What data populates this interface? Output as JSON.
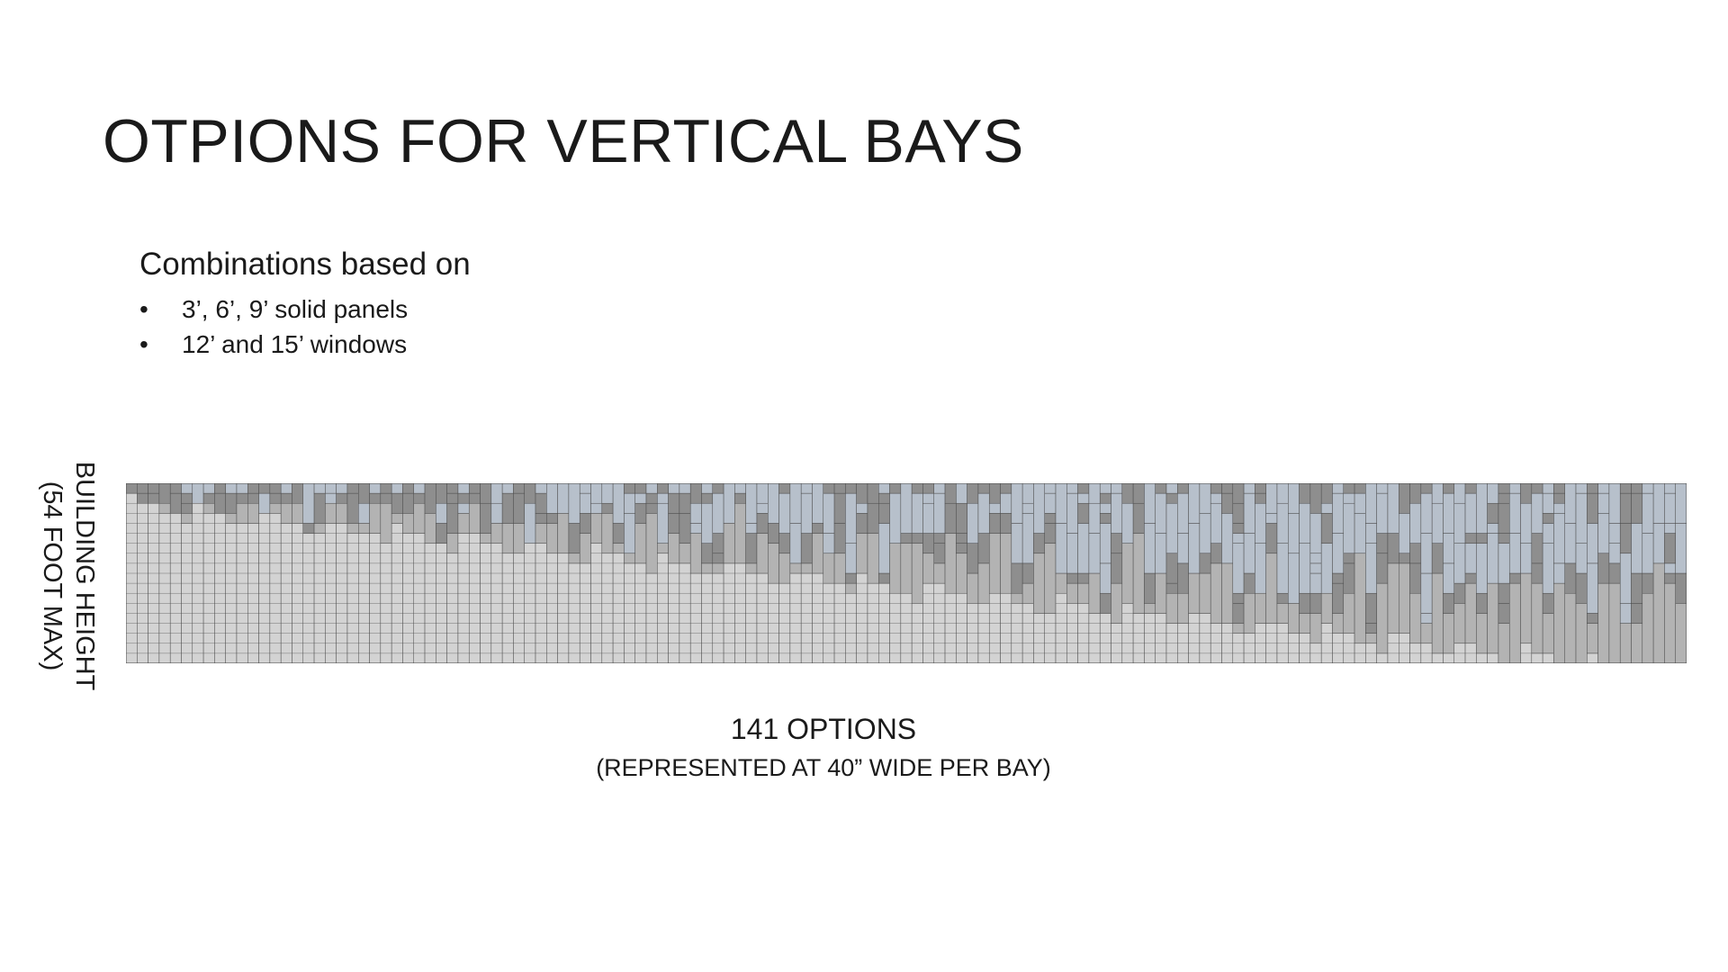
{
  "slide": {
    "title": "OTPIONS FOR VERTICAL BAYS",
    "intro_heading": "Combinations based on",
    "bullet_symbol": "•",
    "bullets": [
      "3’, 6’, 9’ solid panels",
      "12’ and 15’ windows"
    ],
    "y_axis_label_line1": "BUILDING HEIGHT",
    "y_axis_label_line2": "(54 FOOT MAX)",
    "caption_main": "141 OPTIONS",
    "caption_sub": "(REPRESENTED AT 40” WIDE PER BAY)"
  },
  "diagram": {
    "option_count": 141,
    "max_height_ft": 54,
    "panel_sizes_ft": [
      3,
      6,
      9
    ],
    "window_sizes_ft": [
      12,
      15
    ],
    "colors": {
      "solid_light": "#d3d3d3",
      "solid_mid": "#b3b3b3",
      "solid_dark": "#8e8e8e",
      "window": "#b7c0cb",
      "lines": "#4a4a4a"
    }
  }
}
